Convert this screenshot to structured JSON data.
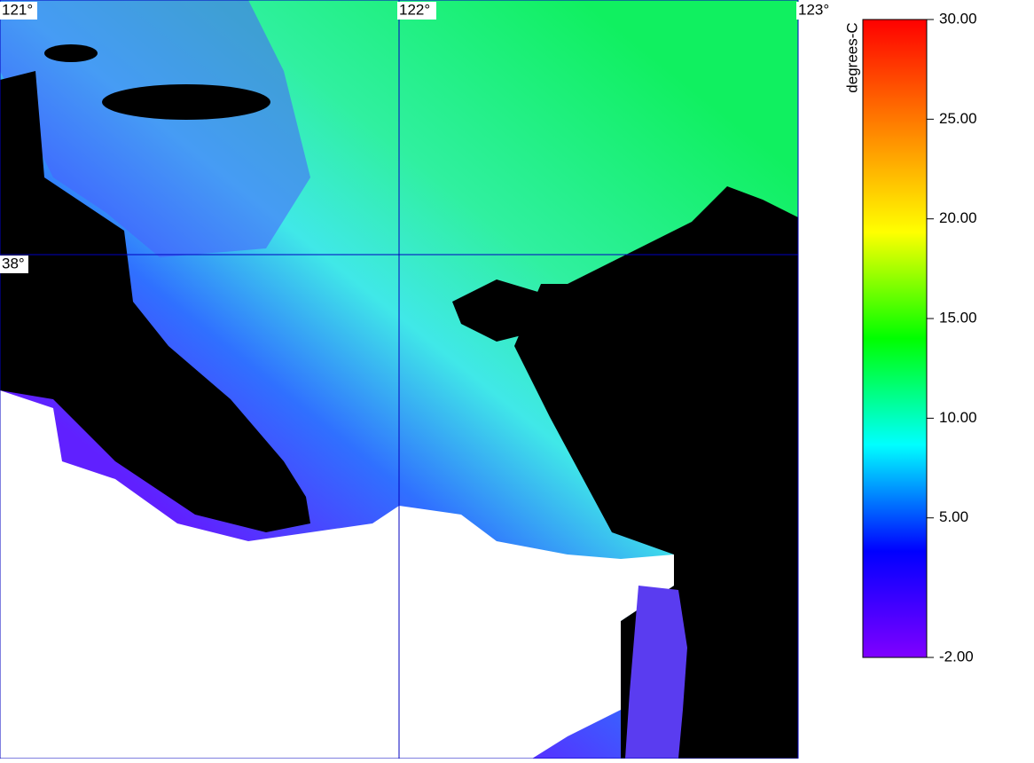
{
  "map": {
    "lon_labels": [
      "121°",
      "122°",
      "123°"
    ],
    "lat_labels": [
      "38°"
    ]
  },
  "colorbar": {
    "title": "degrees-C",
    "lim": [
      -2,
      30
    ],
    "ticks": [
      {
        "value": 30,
        "label": "30.00"
      },
      {
        "value": 25,
        "label": "25.00"
      },
      {
        "value": 20,
        "label": "20.00"
      },
      {
        "value": 15,
        "label": "15.00"
      },
      {
        "value": 10,
        "label": "10.00"
      },
      {
        "value": 5,
        "label": "5.00"
      },
      {
        "value": -2,
        "label": "-2.00"
      }
    ],
    "colormap": [
      "#8000ff",
      "#0000ff",
      "#00ffff",
      "#00ff00",
      "#ffff00",
      "#ff8000",
      "#ff0000"
    ]
  }
}
